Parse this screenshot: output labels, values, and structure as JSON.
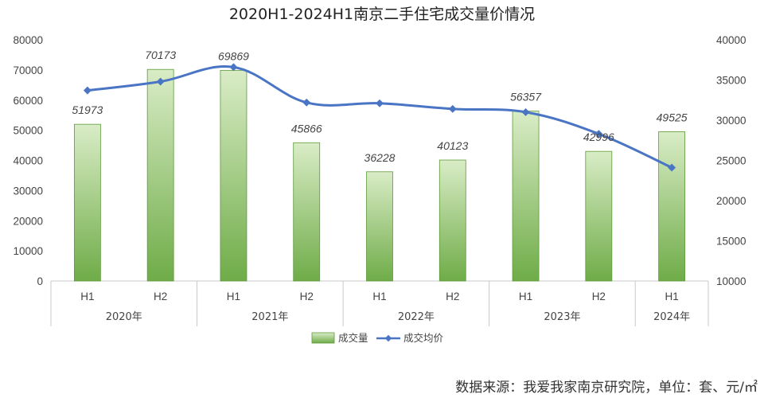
{
  "chart_data": {
    "type": "bar+line",
    "title": "2020H1-2024H1南京二手住宅成交量价情况",
    "categories": [
      "H1",
      "H2",
      "H1",
      "H2",
      "H1",
      "H2",
      "H1",
      "H2",
      "H1"
    ],
    "category_groups": [
      {
        "label": "2020年",
        "count": 2
      },
      {
        "label": "2021年",
        "count": 2
      },
      {
        "label": "2022年",
        "count": 2
      },
      {
        "label": "2023年",
        "count": 2
      },
      {
        "label": "2024年",
        "count": 1
      }
    ],
    "series": [
      {
        "name": "成交量",
        "type": "bar",
        "axis": "left",
        "values": [
          51973,
          70173,
          69869,
          45866,
          36228,
          40123,
          56357,
          42996,
          49525
        ],
        "data_labels": [
          "51973",
          "70173",
          "69869",
          "45866",
          "36228",
          "40123",
          "56357",
          "42996",
          "49525"
        ],
        "color_top": "#d9ecc6",
        "color_bottom": "#6fac48",
        "border": "#5d9a3a"
      },
      {
        "name": "成交均价",
        "type": "line",
        "axis": "right",
        "values": [
          33700,
          34800,
          36600,
          32200,
          32100,
          31400,
          31000,
          28300,
          24100
        ],
        "color": "#4a74c4"
      }
    ],
    "y_left": {
      "min": 0,
      "max": 80000,
      "ticks": [
        0,
        10000,
        20000,
        30000,
        40000,
        50000,
        60000,
        70000,
        80000
      ]
    },
    "y_right": {
      "min": 10000,
      "max": 40000,
      "ticks": [
        10000,
        15000,
        20000,
        25000,
        30000,
        35000,
        40000
      ]
    },
    "grid": false,
    "legend_position": "bottom"
  },
  "footer": {
    "source": "数据来源：我爱我家南京研究院，单位：套、元/㎡"
  }
}
